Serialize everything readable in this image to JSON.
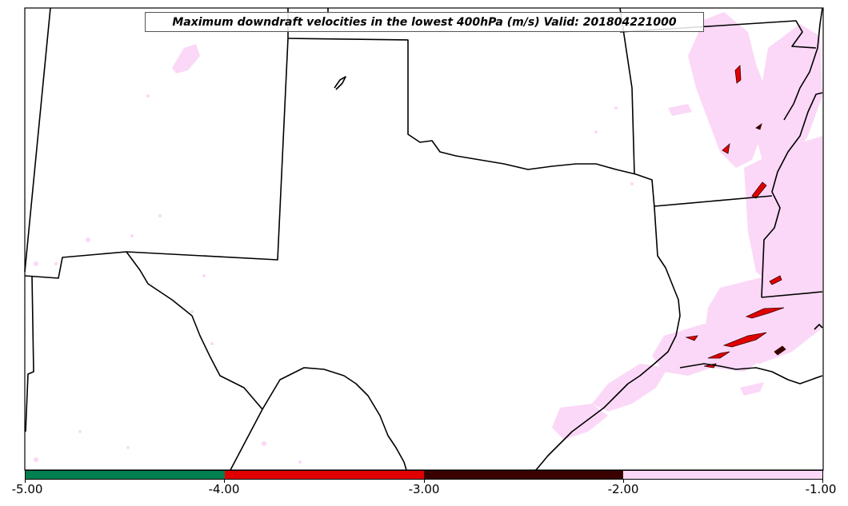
{
  "map": {
    "title": "Maximum downdraft velocities in the lowest 400hPa (m/s) Valid: 201804221000",
    "field_colors": {
      "light": "#fbd8f7",
      "medium": "#e10000",
      "dark": "#3a0000",
      "strongest": "#008050"
    }
  },
  "colorbar": {
    "ticks": [
      "-5.00",
      "-4.00",
      "-3.00",
      "-2.00",
      "-1.00"
    ],
    "segments": [
      {
        "range": "-5 to -4",
        "color": "#008050"
      },
      {
        "range": "-4 to -3",
        "color": "#e10000"
      },
      {
        "range": "-3 to -2",
        "color": "#3a0000"
      },
      {
        "range": "-2 to -1",
        "color": "#fbd8f7"
      }
    ]
  }
}
